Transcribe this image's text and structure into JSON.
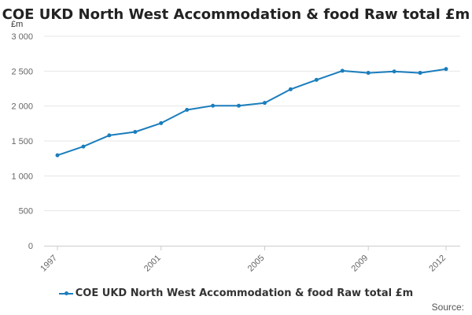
{
  "chart_data": {
    "type": "line",
    "title": "COE UKD North West Accommodation & food Raw total £m",
    "ylabel": "£m",
    "xlabel": "",
    "ylim": [
      0,
      3000
    ],
    "yticks": [
      0,
      500,
      1000,
      1500,
      2000,
      2500,
      3000
    ],
    "ytick_labels": [
      "0",
      "500",
      "1 000",
      "1 500",
      "2 000",
      "2 500",
      "3 000"
    ],
    "xlim": [
      1997,
      2012
    ],
    "xticks": [
      1997,
      2001,
      2005,
      2009,
      2012
    ],
    "xtick_labels": [
      "1997",
      "2001",
      "2005",
      "2009",
      "2012"
    ],
    "grid": "horizontal",
    "legend_position": "bottom",
    "series": [
      {
        "name": "COE UKD North West Accommodation & food Raw total £m",
        "color": "#1a7dbc",
        "x": [
          1997,
          1998,
          1999,
          2000,
          2001,
          2002,
          2003,
          2004,
          2005,
          2006,
          2007,
          2008,
          2009,
          2010,
          2011,
          2012
        ],
        "values": [
          1295,
          1420,
          1580,
          1630,
          1755,
          1945,
          2005,
          2005,
          2045,
          2240,
          2375,
          2505,
          2475,
          2495,
          2475,
          2530
        ]
      }
    ]
  },
  "source_label": "Source:"
}
